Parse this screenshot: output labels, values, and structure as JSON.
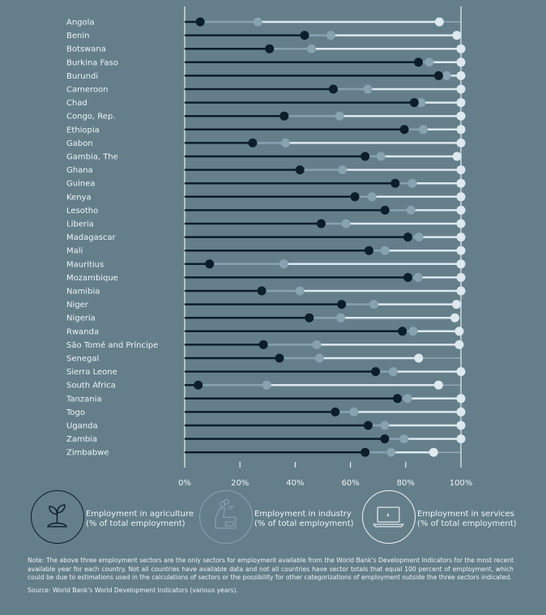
{
  "chart_data": {
    "type": "dot-stacked",
    "xlabel": "",
    "ylabel": "",
    "xlim": [
      0,
      100
    ],
    "x_ticks": [
      "0%",
      "20%",
      "40%",
      "60%",
      "80%",
      "100%"
    ],
    "x_tick_values": [
      0,
      20,
      40,
      60,
      80,
      100
    ],
    "series_names": [
      "agriculture",
      "industry",
      "services"
    ],
    "colors": {
      "agriculture": "#0b1e2a",
      "industry": "#87a3b0",
      "services": "#dde8ef",
      "axis": "#e8eef2"
    },
    "countries": [
      {
        "name": "Angola",
        "agriculture": 5.6,
        "industry": 20.9,
        "services": 65.7
      },
      {
        "name": "Benin",
        "agriculture": 43.4,
        "industry": 9.5,
        "services": 45.6
      },
      {
        "name": "Botswana",
        "agriculture": 30.7,
        "industry": 15.2,
        "services": 54.1
      },
      {
        "name": "Burkina Faso",
        "agriculture": 84.6,
        "industry": 3.9,
        "services": 11.5
      },
      {
        "name": "Burundi",
        "agriculture": 91.9,
        "industry": 2.9,
        "services": 5.2
      },
      {
        "name": "Cameroon",
        "agriculture": 53.8,
        "industry": 12.5,
        "services": 33.7
      },
      {
        "name": "Chad",
        "agriculture": 83.1,
        "industry": 2.5,
        "services": 14.4
      },
      {
        "name": "Congo, Rep.",
        "agriculture": 36.0,
        "industry": 20.1,
        "services": 43.9
      },
      {
        "name": "Ethiopia",
        "agriculture": 79.5,
        "industry": 6.9,
        "services": 13.6
      },
      {
        "name": "Gabon",
        "agriculture": 24.6,
        "industry": 11.9,
        "services": 63.5
      },
      {
        "name": "Gambia, The",
        "agriculture": 65.3,
        "industry": 5.7,
        "services": 27.6
      },
      {
        "name": "Ghana",
        "agriculture": 41.7,
        "industry": 15.4,
        "services": 42.9
      },
      {
        "name": "Guinea",
        "agriculture": 76.2,
        "industry": 6.2,
        "services": 17.6
      },
      {
        "name": "Kenya",
        "agriculture": 61.6,
        "industry": 6.2,
        "services": 32.2
      },
      {
        "name": "Lesotho",
        "agriculture": 72.5,
        "industry": 9.4,
        "services": 18.1
      },
      {
        "name": "Liberia",
        "agriculture": 49.4,
        "industry": 9.0,
        "services": 41.6
      },
      {
        "name": "Madagascar",
        "agriculture": 80.8,
        "industry": 4.0,
        "services": 15.2
      },
      {
        "name": "Mali",
        "agriculture": 66.7,
        "industry": 5.8,
        "services": 27.5
      },
      {
        "name": "Mauritius",
        "agriculture": 9.0,
        "industry": 26.9,
        "services": 64.1
      },
      {
        "name": "Mozambique",
        "agriculture": 80.8,
        "industry": 3.7,
        "services": 15.5
      },
      {
        "name": "Namibia",
        "agriculture": 27.9,
        "industry": 13.8,
        "services": 58.3
      },
      {
        "name": "Niger",
        "agriculture": 56.8,
        "industry": 11.7,
        "services": 29.9
      },
      {
        "name": "Nigeria",
        "agriculture": 45.1,
        "industry": 11.4,
        "services": 41.3
      },
      {
        "name": "Rwanda",
        "agriculture": 78.8,
        "industry": 3.9,
        "services": 16.7
      },
      {
        "name": "São Tomé and Príncipe",
        "agriculture": 28.5,
        "industry": 19.3,
        "services": 51.6
      },
      {
        "name": "Senegal",
        "agriculture": 34.3,
        "industry": 14.5,
        "services": 35.9
      },
      {
        "name": "Sierra Leone",
        "agriculture": 69.1,
        "industry": 6.4,
        "services": 24.5
      },
      {
        "name": "South Africa",
        "agriculture": 4.9,
        "industry": 24.8,
        "services": 62.2
      },
      {
        "name": "Tanzania",
        "agriculture": 77.0,
        "industry": 3.7,
        "services": 19.3
      },
      {
        "name": "Togo",
        "agriculture": 54.5,
        "industry": 6.8,
        "services": 38.7
      },
      {
        "name": "Uganda",
        "agriculture": 66.4,
        "industry": 6.0,
        "services": 27.6
      },
      {
        "name": "Zambia",
        "agriculture": 72.4,
        "industry": 7.0,
        "services": 20.6
      },
      {
        "name": "Zimbabwe",
        "agriculture": 65.3,
        "industry": 9.4,
        "services": 15.4
      }
    ]
  },
  "legend": {
    "agriculture": {
      "line1": "Employment in agriculture",
      "line2": "(% of total employment)",
      "icon": "plant-icon"
    },
    "industry": {
      "line1": "Employment in industry",
      "line2": "(% of total employment)",
      "icon": "factory-icon"
    },
    "services": {
      "line1": "Employment in services",
      "line2": "(% of total employment)",
      "icon": "laptop-icon"
    }
  },
  "note": "Note: The above three employment sectors are the only sectors for employment available from the World Bank's Development Indicators for the most recent available year for each country. Not all countries have available data and not all countries have sector totals that equal 100 percent of employment, which could be due to estimations used in the calculations of sectors or the possibility for other categorizations of employment outside the three sectors indicated.",
  "source": "Source: World Bank's World Development Indicators (various years)."
}
